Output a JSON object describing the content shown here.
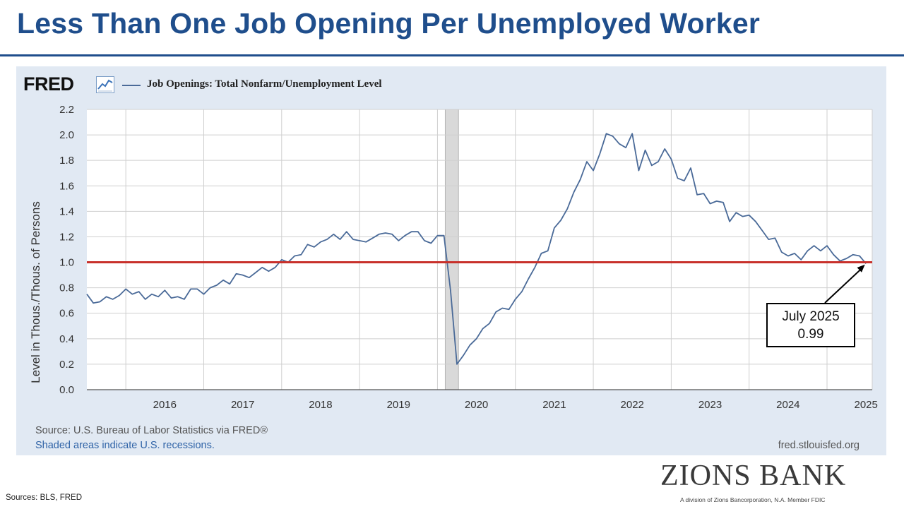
{
  "slide": {
    "title": "Less Than One Job Opening Per Unemployed Worker",
    "footer_source": "Sources: BLS, FRED"
  },
  "brand": {
    "name": "ZIONS BANK",
    "tagline": "A division of Zions Bancorporation, N.A. Member FDIC",
    "title_color": "#1f4e8c"
  },
  "fred": {
    "logo": "FRED",
    "source": "Source: U.S. Bureau of Labor Statistics via FRED®",
    "recession_note": "Shaded areas indicate U.S. recessions.",
    "url": "fred.stlouisfed.org",
    "icon": "line-chart-icon"
  },
  "callout": {
    "line1": "July 2025",
    "line2": "0.99"
  },
  "chart_data": {
    "type": "line",
    "title": "",
    "xlabel": "",
    "ylabel": "Level in Thous./Thous. of Persons",
    "xlim": [
      2015.5,
      2025.58
    ],
    "ylim": [
      0,
      2.2
    ],
    "yticks": [
      0.0,
      0.2,
      0.4,
      0.6,
      0.8,
      1.0,
      1.2,
      1.4,
      1.6,
      1.8,
      2.0,
      2.2
    ],
    "ytick_labels": [
      "0.0",
      "0.2",
      "0.4",
      "0.6",
      "0.8",
      "1.0",
      "1.2",
      "1.4",
      "1.6",
      "1.8",
      "2.0",
      "2.2"
    ],
    "xtick_labels": [
      "2016",
      "2017",
      "2018",
      "2019",
      "2020",
      "2021",
      "2022",
      "2023",
      "2024",
      "2025"
    ],
    "grid": true,
    "legend_position": "top-left",
    "reference_line": {
      "y": 1.0,
      "color": "#c8312b"
    },
    "recession": {
      "start": 2020.1,
      "end": 2020.27,
      "color": "#d9d9d9"
    },
    "series": [
      {
        "name": "Job Openings: Total Nonfarm/Unemployment Level",
        "color": "#4a6a98",
        "x": [
          2015.5,
          2015.583,
          2015.667,
          2015.75,
          2015.833,
          2015.917,
          2016.0,
          2016.083,
          2016.167,
          2016.25,
          2016.333,
          2016.417,
          2016.5,
          2016.583,
          2016.667,
          2016.75,
          2016.833,
          2016.917,
          2017.0,
          2017.083,
          2017.167,
          2017.25,
          2017.333,
          2017.417,
          2017.5,
          2017.583,
          2017.667,
          2017.75,
          2017.833,
          2017.917,
          2018.0,
          2018.083,
          2018.167,
          2018.25,
          2018.333,
          2018.417,
          2018.5,
          2018.583,
          2018.667,
          2018.75,
          2018.833,
          2018.917,
          2019.0,
          2019.083,
          2019.167,
          2019.25,
          2019.333,
          2019.417,
          2019.5,
          2019.583,
          2019.667,
          2019.75,
          2019.833,
          2019.917,
          2020.0,
          2020.083,
          2020.167,
          2020.25,
          2020.333,
          2020.417,
          2020.5,
          2020.583,
          2020.667,
          2020.75,
          2020.833,
          2020.917,
          2021.0,
          2021.083,
          2021.167,
          2021.25,
          2021.333,
          2021.417,
          2021.5,
          2021.583,
          2021.667,
          2021.75,
          2021.833,
          2021.917,
          2022.0,
          2022.083,
          2022.167,
          2022.25,
          2022.333,
          2022.417,
          2022.5,
          2022.583,
          2022.667,
          2022.75,
          2022.833,
          2022.917,
          2023.0,
          2023.083,
          2023.167,
          2023.25,
          2023.333,
          2023.417,
          2023.5,
          2023.583,
          2023.667,
          2023.75,
          2023.833,
          2023.917,
          2024.0,
          2024.083,
          2024.167,
          2024.25,
          2024.333,
          2024.417,
          2024.5,
          2024.583,
          2024.667,
          2024.75,
          2024.833,
          2024.917,
          2025.0,
          2025.083,
          2025.167,
          2025.25,
          2025.333,
          2025.417,
          2025.5
        ],
        "y": [
          0.75,
          0.68,
          0.69,
          0.73,
          0.71,
          0.74,
          0.79,
          0.75,
          0.77,
          0.71,
          0.75,
          0.73,
          0.78,
          0.72,
          0.73,
          0.71,
          0.79,
          0.79,
          0.75,
          0.8,
          0.82,
          0.86,
          0.83,
          0.91,
          0.9,
          0.88,
          0.92,
          0.96,
          0.93,
          0.96,
          1.02,
          1.0,
          1.05,
          1.06,
          1.14,
          1.12,
          1.16,
          1.18,
          1.22,
          1.18,
          1.24,
          1.18,
          1.17,
          1.16,
          1.19,
          1.22,
          1.23,
          1.22,
          1.17,
          1.21,
          1.24,
          1.24,
          1.17,
          1.15,
          1.21,
          1.21,
          0.78,
          0.2,
          0.27,
          0.35,
          0.4,
          0.48,
          0.52,
          0.61,
          0.64,
          0.63,
          0.71,
          0.77,
          0.87,
          0.96,
          1.07,
          1.09,
          1.27,
          1.33,
          1.42,
          1.55,
          1.65,
          1.79,
          1.72,
          1.85,
          2.01,
          1.99,
          1.93,
          1.9,
          2.01,
          1.72,
          1.88,
          1.76,
          1.79,
          1.89,
          1.81,
          1.66,
          1.64,
          1.74,
          1.53,
          1.54,
          1.46,
          1.48,
          1.47,
          1.32,
          1.39,
          1.36,
          1.37,
          1.32,
          1.25,
          1.18,
          1.19,
          1.08,
          1.05,
          1.07,
          1.02,
          1.09,
          1.13,
          1.09,
          1.13,
          1.06,
          1.01,
          1.03,
          1.06,
          1.05,
          0.99
        ]
      }
    ]
  }
}
